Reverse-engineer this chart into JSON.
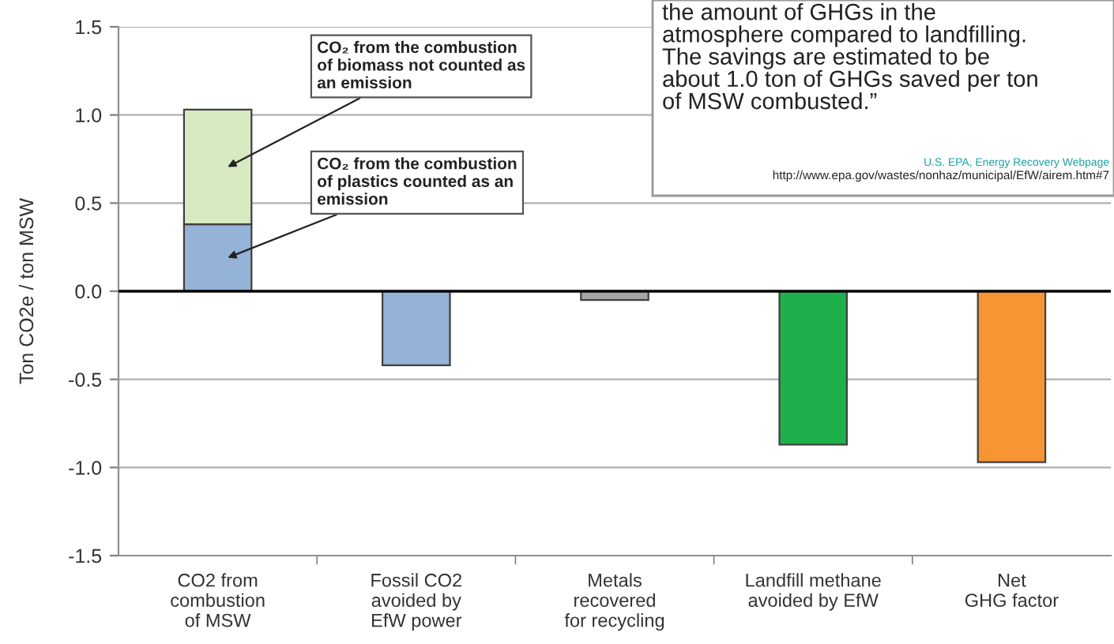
{
  "chart_data": {
    "type": "bar",
    "stacked": true,
    "ylabel": "Ton CO2e / ton MSW",
    "categories": [
      "CO2 from\ncombustion\nof MSW",
      "Fossil CO2\navoided by\nEfW power",
      "Metals\nrecovered\nfor recycling",
      "Landfill methane\navoided by EfW",
      "Net\nGHG factor"
    ],
    "series": [
      {
        "values": [
          0.38,
          -0.42,
          -0.05,
          -0.87,
          -0.97
        ],
        "colors": [
          "#95b3d7",
          "#95b3d7",
          "#a6a6a6",
          "#1fb04b",
          "#f79433"
        ]
      },
      {
        "values": [
          0.65,
          null,
          null,
          null,
          null
        ],
        "color": "#d7e9c1"
      }
    ],
    "ylim": [
      -1.5,
      1.5
    ],
    "yticks": [
      {
        "value": -1.5,
        "label": "-1.5"
      },
      {
        "value": -1.0,
        "label": "-1.0"
      },
      {
        "value": -0.5,
        "label": "-0.5"
      },
      {
        "value": 0,
        "label": "0.0"
      },
      {
        "value": 0.5,
        "label": "0.5"
      },
      {
        "value": 1.0,
        "label": "1.0"
      },
      {
        "value": 1.5,
        "label": "1.5"
      }
    ],
    "grid": "y",
    "ref_lines": [
      {
        "axis": "y",
        "value": 0,
        "color": "#000000"
      }
    ],
    "annotations": [
      "CO₂ from the combustion\nof biomass not counted as\nan emission",
      "CO₂ from the combustion\nof plastics counted as an\nemission",
      "the amount of GHGs in the\natmosphere compared to landfilling.\nThe savings are estimated to be\nabout 1.0 ton of GHGs saved per ton\nof MSW combusted.”",
      "U.S. EPA, Energy Recovery Webpage",
      "http://www.epa.gov/wastes/nonhaz/municipal/EfW/airem.htm#7"
    ]
  }
}
